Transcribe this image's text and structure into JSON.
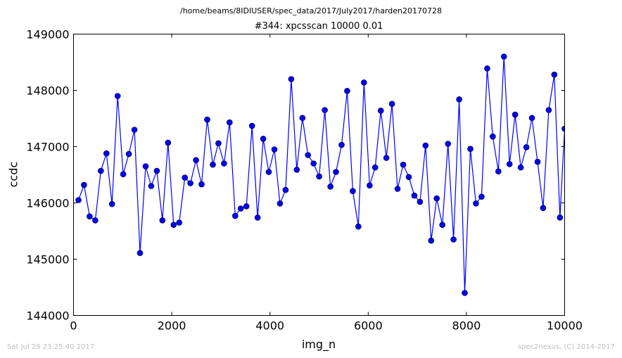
{
  "suptitle": "/home/beams/8IDIUSER/spec_data/2017/July2017/harden20170728",
  "footer": {
    "timestamp": "Sat Jul 29 23:25:40 2017",
    "credit": "spec2nexus, (C) 2014-2017"
  },
  "colors": {
    "series": "#0000ff",
    "marker_edge": "#000000"
  },
  "chart_data": {
    "type": "line",
    "title": "#344: xpcsscan 10000 0.01",
    "xlabel": "img_n",
    "ylabel": "ccdc",
    "xlim": [
      0,
      10000
    ],
    "ylim": [
      144000,
      149000
    ],
    "xticks": [
      "0",
      "2000",
      "4000",
      "6000",
      "8000",
      "10000"
    ],
    "yticks": [
      "144000",
      "145000",
      "146000",
      "147000",
      "148000",
      "149000"
    ],
    "grid": false,
    "marker": "circle",
    "x": [
      100,
      214,
      328,
      442,
      556,
      670,
      784,
      898,
      1012,
      1126,
      1240,
      1354,
      1468,
      1582,
      1696,
      1810,
      1924,
      2038,
      2152,
      2266,
      2380,
      2494,
      2608,
      2722,
      2836,
      2950,
      3064,
      3178,
      3292,
      3406,
      3520,
      3634,
      3748,
      3862,
      3976,
      4090,
      4204,
      4318,
      4432,
      4546,
      4660,
      4774,
      4888,
      5002,
      5116,
      5230,
      5344,
      5458,
      5572,
      5686,
      5800,
      5914,
      6028,
      6142,
      6256,
      6370,
      6484,
      6598,
      6712,
      6826,
      6940,
      7054,
      7168,
      7282,
      7396,
      7510,
      7624,
      7738,
      7852,
      7966,
      8080,
      8194,
      8308,
      8422,
      8536,
      8650,
      8764,
      8878,
      8992,
      9106,
      9220,
      9334,
      9448,
      9562,
      9676,
      9790,
      9904,
      10000
    ],
    "y": [
      146050,
      146320,
      145760,
      145690,
      146570,
      146880,
      145980,
      147900,
      146510,
      146870,
      147300,
      145110,
      146650,
      146300,
      146570,
      145690,
      147070,
      145610,
      145650,
      146450,
      146350,
      146760,
      146330,
      147480,
      146680,
      147060,
      146700,
      147430,
      145770,
      145900,
      145940,
      147370,
      145740,
      147140,
      146550,
      146950,
      145990,
      146230,
      148200,
      146590,
      147510,
      146850,
      146700,
      146470,
      147650,
      146290,
      146550,
      147030,
      147990,
      146210,
      145580,
      148140,
      146310,
      146630,
      147640,
      146800,
      147760,
      146250,
      146680,
      146460,
      146130,
      146020,
      147020,
      145330,
      146080,
      145610,
      147050,
      145350,
      147840,
      144400,
      146960,
      145990,
      146110,
      148390,
      147180,
      146560,
      148600,
      146690,
      147570,
      146630,
      146990,
      147510,
      146730,
      145910,
      147650,
      148280,
      145740,
      147320
    ]
  }
}
